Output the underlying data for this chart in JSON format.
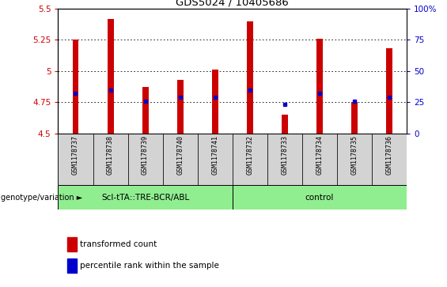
{
  "title": "GDS5024 / 10405686",
  "samples": [
    "GSM1178737",
    "GSM1178738",
    "GSM1178739",
    "GSM1178740",
    "GSM1178741",
    "GSM1178732",
    "GSM1178733",
    "GSM1178734",
    "GSM1178735",
    "GSM1178736"
  ],
  "bar_tops": [
    5.25,
    5.42,
    4.87,
    4.93,
    5.01,
    5.4,
    4.65,
    5.26,
    4.75,
    5.18
  ],
  "bar_bottoms": [
    4.5,
    4.5,
    4.5,
    4.5,
    4.5,
    4.5,
    4.5,
    4.5,
    4.5,
    4.5
  ],
  "blue_dots": [
    4.82,
    4.85,
    4.76,
    4.79,
    4.79,
    4.85,
    4.73,
    4.82,
    4.76,
    4.79
  ],
  "bar_color": "#cc0000",
  "dot_color": "#0000cc",
  "ylim_left": [
    4.5,
    5.5
  ],
  "ylim_right": [
    0,
    100
  ],
  "yticks_left": [
    4.5,
    4.75,
    5.0,
    5.25,
    5.5
  ],
  "yticks_right": [
    0,
    25,
    50,
    75,
    100
  ],
  "grid_lines": [
    4.75,
    5.0,
    5.25
  ],
  "group1_label": "ScI-tTA::TRE-BCR/ABL",
  "group2_label": "control",
  "group_label_prefix": "genotype/variation",
  "legend_bar_label": "transformed count",
  "legend_dot_label": "percentile rank within the sample",
  "bar_width": 0.18,
  "group1_color": "#90ee90",
  "group2_color": "#90ee90",
  "tick_color_left": "#cc0000",
  "tick_color_right": "#0000cc",
  "cell_color": "#d3d3d3"
}
